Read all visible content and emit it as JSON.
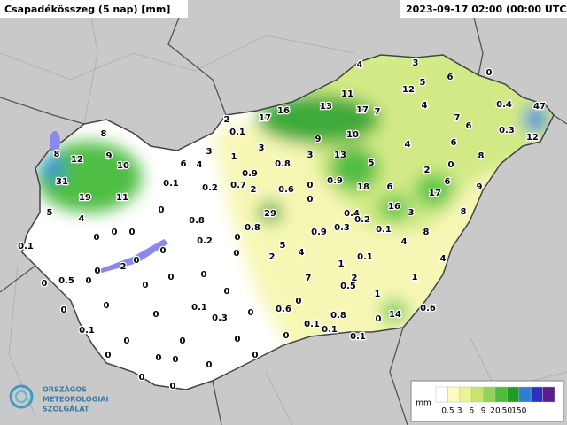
{
  "header": {
    "title": "Csapadékösszeg (5 nap) [mm]",
    "timestamp": "2023-09-17 02:00 (00:00 UTC)"
  },
  "station_values": [
    4,
    3,
    0,
    12,
    5,
    6,
    11,
    13,
    17,
    7,
    4,
    0.4,
    47,
    7,
    6,
    0.3,
    12,
    17,
    16,
    2,
    0.1,
    8,
    9,
    10,
    4,
    6,
    3,
    3,
    8,
    12,
    9,
    10,
    6,
    4,
    1,
    0.8,
    3,
    13,
    5,
    8,
    2,
    0,
    0.9,
    31,
    19,
    11,
    0.1,
    0.2,
    0.7,
    2,
    0.6,
    0,
    0.9,
    18,
    6,
    6,
    9,
    17,
    5,
    4,
    0,
    0,
    16,
    3,
    8,
    29,
    0.4,
    0.2,
    0.8,
    0.8,
    0,
    0,
    0,
    0,
    0.9,
    0.3,
    0.1,
    8,
    0.1,
    0.2,
    5,
    4,
    4,
    0,
    0,
    2,
    0.1,
    0,
    2,
    1,
    4,
    0,
    0,
    0.5,
    0,
    0,
    0,
    7,
    2,
    1,
    0.5,
    0,
    0,
    1,
    0,
    0,
    0,
    0.1,
    0.6,
    0.6,
    0,
    0.3,
    0,
    0.8,
    14,
    0.1,
    0.1,
    0,
    0,
    0.1,
    0.1,
    0,
    0,
    0,
    0,
    0,
    0,
    0,
    0,
    0,
    0
  ],
  "legend": {
    "unit": "mm",
    "ticks": [
      0.5,
      3,
      6,
      9,
      20,
      50,
      150
    ]
  },
  "logo": {
    "lines": [
      "ORSZÁGOS",
      "METEOROLÓGIAI",
      "SZOLGÁLAT"
    ]
  }
}
